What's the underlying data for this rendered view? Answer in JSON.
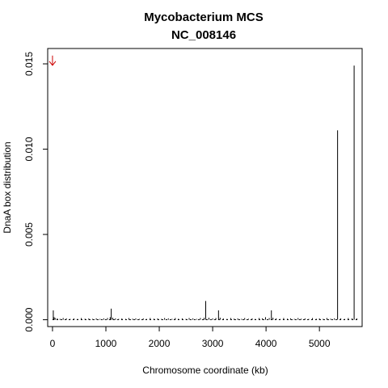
{
  "chart_data": {
    "type": "bar",
    "title": "Mycobacterium MCS",
    "subtitle": "NC_008146",
    "xlabel": "Chromosome coordinate (kb)",
    "ylabel": "DnaA box distribution",
    "xlim": [
      -90,
      5800
    ],
    "ylim": [
      -0.0004,
      0.0159
    ],
    "x_ticks": [
      0,
      1000,
      2000,
      3000,
      4000,
      5000
    ],
    "x_tick_labels": [
      "0",
      "1000",
      "2000",
      "3000",
      "4000",
      "5000"
    ],
    "y_ticks": [
      0,
      0.005,
      0.01,
      0.015
    ],
    "y_tick_labels": [
      "0.000",
      "0.005",
      "0.010",
      "0.015"
    ],
    "grid": false,
    "legend": "none",
    "origin_arrow": {
      "x": 0,
      "y": 0.0152,
      "color": "#cc0000"
    },
    "bar_color": "#000000",
    "x": [
      15,
      30,
      50,
      90,
      140,
      200,
      260,
      330,
      400,
      470,
      540,
      610,
      680,
      750,
      820,
      890,
      960,
      1030,
      1080,
      1100,
      1130,
      1180,
      1240,
      1300,
      1370,
      1430,
      1500,
      1560,
      1630,
      1700,
      1760,
      1830,
      1900,
      1970,
      2040,
      2100,
      2170,
      2240,
      2300,
      2360,
      2430,
      2500,
      2560,
      2630,
      2700,
      2770,
      2840,
      2870,
      2930,
      3000,
      3060,
      3110,
      3140,
      3200,
      3270,
      3340,
      3400,
      3470,
      3540,
      3600,
      3670,
      3740,
      3800,
      3870,
      3930,
      3990,
      4060,
      4100,
      4130,
      4190,
      4260,
      4330,
      4400,
      4460,
      4530,
      4600,
      4660,
      4730,
      4800,
      4870,
      4940,
      5000,
      5070,
      5140,
      5210,
      5280,
      5340,
      5400,
      5470,
      5540,
      5610,
      5650,
      5700
    ],
    "values": [
      0.00055,
      0.00015,
      0.0001,
      8e-05,
      5e-05,
      0.0001,
      8e-05,
      5e-05,
      8e-05,
      5e-05,
      0.0001,
      6e-05,
      8e-05,
      5e-05,
      8e-05,
      5e-05,
      8e-05,
      0.0001,
      0.00015,
      0.00065,
      0.00012,
      8e-05,
      5e-05,
      8e-05,
      5e-05,
      0.0001,
      6e-05,
      8e-05,
      5e-05,
      8e-05,
      5e-05,
      0.0001,
      6e-05,
      8e-05,
      5e-05,
      0.0001,
      8e-05,
      5e-05,
      0.0001,
      6e-05,
      8e-05,
      5e-05,
      0.0001,
      8e-05,
      5e-05,
      0.0001,
      0.00012,
      0.0011,
      0.00012,
      8e-05,
      0.0001,
      0.00055,
      0.00012,
      8e-05,
      5e-05,
      0.0001,
      6e-05,
      8e-05,
      5e-05,
      0.0001,
      6e-05,
      8e-05,
      5e-05,
      0.0001,
      8e-05,
      0.00015,
      0.0001,
      0.00055,
      0.00012,
      8e-05,
      5e-05,
      0.0001,
      6e-05,
      8e-05,
      5e-05,
      0.0001,
      6e-05,
      8e-05,
      5e-05,
      0.0001,
      6e-05,
      8e-05,
      5e-05,
      0.0001,
      6e-05,
      8e-05,
      0.0111,
      8e-05,
      5e-05,
      0.0001,
      8e-05,
      0.0149,
      8e-05
    ]
  }
}
